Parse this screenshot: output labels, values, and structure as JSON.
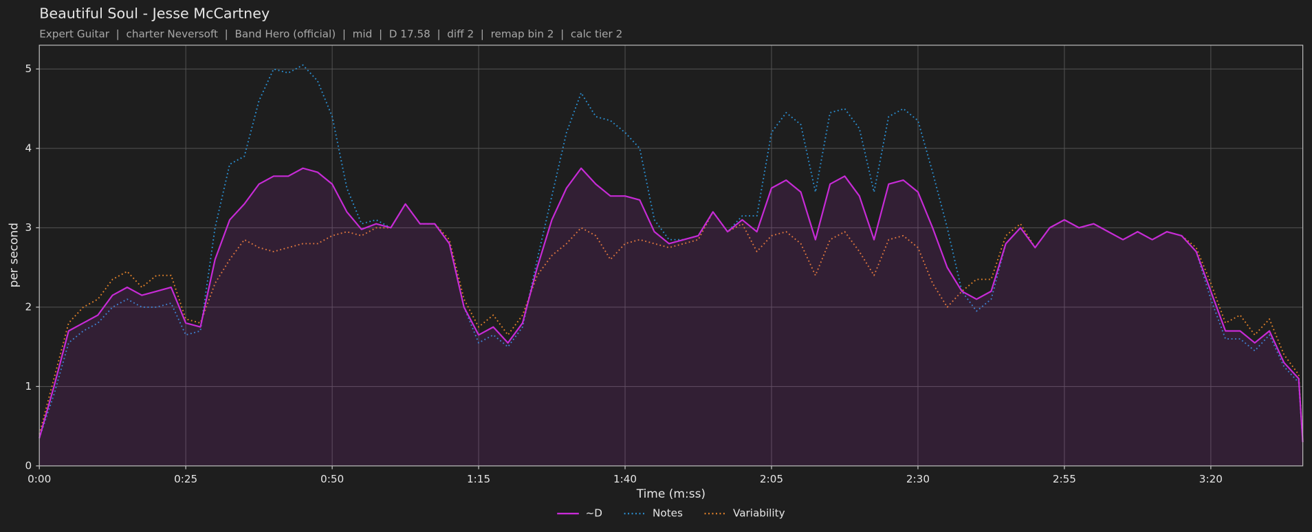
{
  "chart_data": {
    "type": "line",
    "title": "Beautiful Soul - Jesse McCartney",
    "subtitle": "Expert Guitar  |  charter Neversoft  |  Band Hero (official)  |  mid  |  D 17.58  |  diff 2  |  remap bin 2  |  calc tier 2",
    "xlabel": "Time (m:ss)",
    "ylabel": "per second",
    "xlim": [
      0,
      215.7
    ],
    "ylim": [
      0,
      5.3
    ],
    "xticks": [
      {
        "value": 0,
        "label": "0:00"
      },
      {
        "value": 25,
        "label": "0:25"
      },
      {
        "value": 50,
        "label": "0:50"
      },
      {
        "value": 75,
        "label": "1:15"
      },
      {
        "value": 100,
        "label": "1:40"
      },
      {
        "value": 125,
        "label": "2:05"
      },
      {
        "value": 150,
        "label": "2:30"
      },
      {
        "value": 175,
        "label": "2:55"
      },
      {
        "value": 200,
        "label": "3:20"
      }
    ],
    "yticks": [
      0,
      1,
      2,
      3,
      4,
      5
    ],
    "grid": true,
    "legend": "bottom",
    "x": [
      0,
      2.5,
      5,
      7.5,
      10,
      12.5,
      15,
      17.5,
      20,
      22.5,
      25,
      27.5,
      30,
      32.5,
      35,
      37.5,
      40,
      42.5,
      45,
      47.5,
      50,
      52.5,
      55,
      57.5,
      60,
      62.5,
      65,
      67.5,
      70,
      72.5,
      75,
      77.5,
      80,
      82.5,
      85,
      87.5,
      90,
      92.5,
      95,
      97.5,
      100,
      102.5,
      105,
      107.5,
      110,
      112.5,
      115,
      117.5,
      120,
      122.5,
      125,
      127.5,
      130,
      132.5,
      135,
      137.5,
      140,
      142.5,
      145,
      147.5,
      150,
      152.5,
      155,
      157.5,
      160,
      162.5,
      165,
      167.5,
      170,
      172.5,
      175,
      177.5,
      180,
      182.5,
      185,
      187.5,
      190,
      192.5,
      195,
      197.5,
      200,
      202.5,
      205,
      207.5,
      210,
      212.5,
      215,
      215.7
    ],
    "series": [
      {
        "name": "~D",
        "color": "#c72bd6",
        "dash": "solid",
        "fill": true,
        "values": [
          0.35,
          1.0,
          1.7,
          1.8,
          1.9,
          2.15,
          2.25,
          2.15,
          2.2,
          2.25,
          1.8,
          1.75,
          2.6,
          3.1,
          3.3,
          3.55,
          3.65,
          3.65,
          3.75,
          3.7,
          3.55,
          3.2,
          2.98,
          3.05,
          3.0,
          3.3,
          3.05,
          3.05,
          2.8,
          2.0,
          1.65,
          1.75,
          1.55,
          1.8,
          2.5,
          3.1,
          3.5,
          3.75,
          3.55,
          3.4,
          3.4,
          3.35,
          2.95,
          2.8,
          2.85,
          2.9,
          3.2,
          2.95,
          3.1,
          2.95,
          3.5,
          3.6,
          3.45,
          2.85,
          3.55,
          3.65,
          3.4,
          2.85,
          3.55,
          3.6,
          3.45,
          3.0,
          2.5,
          2.2,
          2.1,
          2.2,
          2.8,
          3.0,
          2.75,
          3.0,
          3.1,
          3.0,
          3.05,
          2.95,
          2.85,
          2.95,
          2.85,
          2.95,
          2.9,
          2.7,
          2.2,
          1.7,
          1.7,
          1.55,
          1.7,
          1.3,
          1.1,
          0.3
        ]
      },
      {
        "name": "Notes",
        "color": "#2b8fd1",
        "dash": "dotted",
        "fill": false,
        "values": [
          0.35,
          0.9,
          1.55,
          1.7,
          1.8,
          2.0,
          2.1,
          2.0,
          2.0,
          2.05,
          1.65,
          1.7,
          3.0,
          3.8,
          3.9,
          4.6,
          5.0,
          4.95,
          5.05,
          4.85,
          4.4,
          3.5,
          3.05,
          3.1,
          3.0,
          3.3,
          3.05,
          3.05,
          2.8,
          2.0,
          1.55,
          1.65,
          1.5,
          1.75,
          2.6,
          3.4,
          4.2,
          4.7,
          4.4,
          4.35,
          4.2,
          4.0,
          3.1,
          2.85,
          2.85,
          2.9,
          3.2,
          2.95,
          3.15,
          3.15,
          4.2,
          4.45,
          4.3,
          3.45,
          4.45,
          4.5,
          4.25,
          3.45,
          4.4,
          4.5,
          4.35,
          3.7,
          3.0,
          2.2,
          1.95,
          2.1,
          2.8,
          3.0,
          2.75,
          3.0,
          3.1,
          3.0,
          3.05,
          2.95,
          2.85,
          2.95,
          2.85,
          2.95,
          2.9,
          2.7,
          2.1,
          1.6,
          1.6,
          1.45,
          1.65,
          1.25,
          1.05,
          0.3
        ]
      },
      {
        "name": "Variability",
        "color": "#e3822a",
        "dash": "dotted",
        "fill": false,
        "values": [
          0.4,
          1.1,
          1.8,
          2.0,
          2.1,
          2.35,
          2.45,
          2.25,
          2.4,
          2.4,
          1.85,
          1.8,
          2.3,
          2.6,
          2.85,
          2.75,
          2.7,
          2.75,
          2.8,
          2.8,
          2.9,
          2.95,
          2.9,
          3.0,
          3.0,
          3.3,
          3.05,
          3.05,
          2.85,
          2.1,
          1.75,
          1.9,
          1.65,
          1.9,
          2.4,
          2.65,
          2.8,
          3.0,
          2.9,
          2.6,
          2.8,
          2.85,
          2.8,
          2.75,
          2.8,
          2.85,
          3.2,
          2.95,
          3.05,
          2.7,
          2.9,
          2.95,
          2.8,
          2.4,
          2.85,
          2.95,
          2.7,
          2.4,
          2.85,
          2.9,
          2.75,
          2.3,
          2.0,
          2.2,
          2.35,
          2.35,
          2.9,
          3.05,
          2.75,
          3.0,
          3.1,
          3.0,
          3.05,
          2.95,
          2.85,
          2.95,
          2.85,
          2.95,
          2.9,
          2.75,
          2.3,
          1.8,
          1.9,
          1.65,
          1.85,
          1.4,
          1.15,
          0.3
        ]
      }
    ]
  }
}
